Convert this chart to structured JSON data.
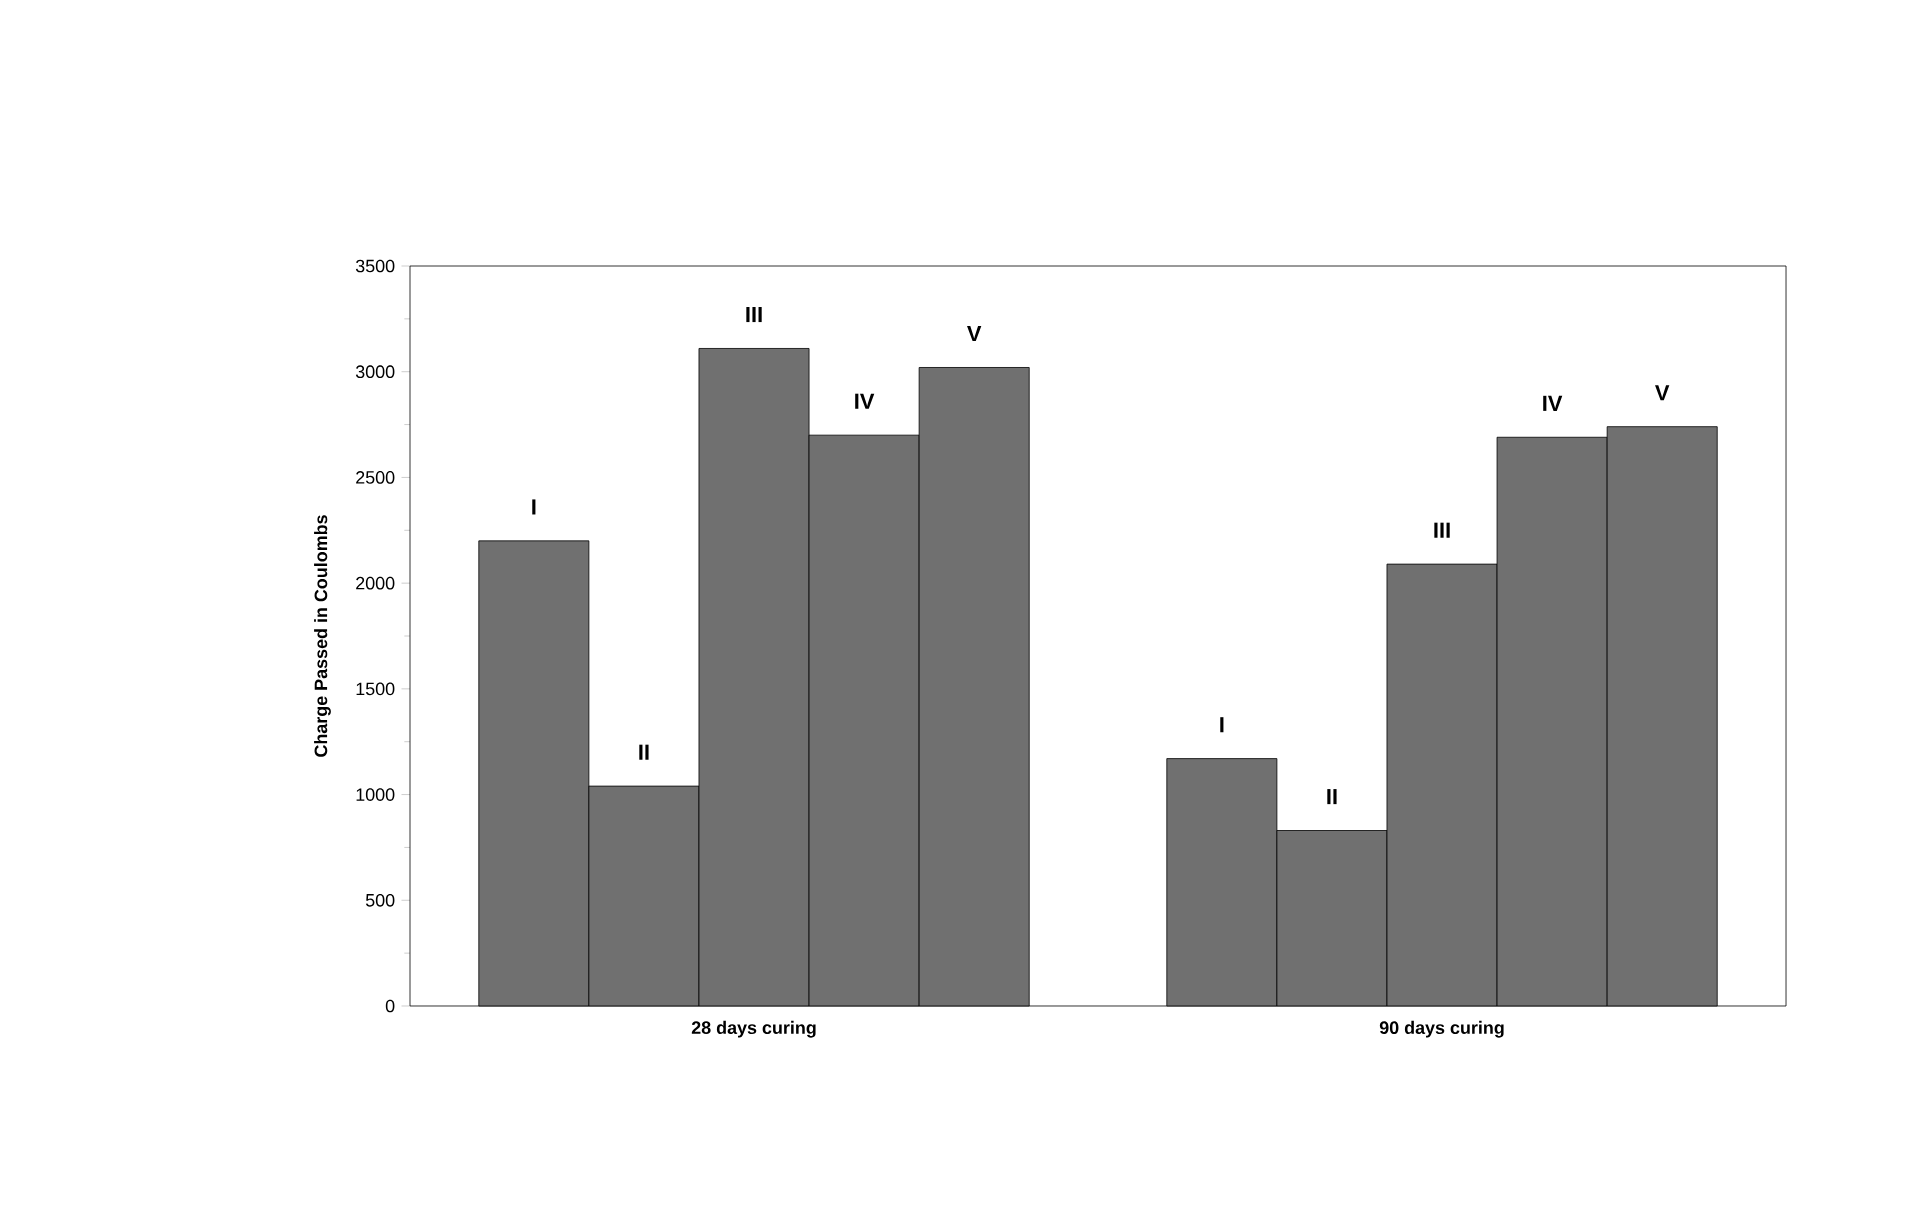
{
  "chart_data": {
    "type": "bar",
    "ylabel": "Charge Passed in Coulombs",
    "categories": [
      "28 days curing",
      "90 days curing"
    ],
    "series": [
      {
        "name": "I",
        "color": "#707070",
        "values": [
          2200,
          1170
        ]
      },
      {
        "name": "II",
        "color": "#707070",
        "values": [
          1040,
          830
        ]
      },
      {
        "name": "III",
        "color": "#707070",
        "values": [
          3110,
          2090
        ]
      },
      {
        "name": "IV",
        "color": "#707070",
        "values": [
          2700,
          2690
        ]
      },
      {
        "name": "V",
        "color": "#707070",
        "values": [
          3020,
          2740
        ]
      }
    ],
    "ylim": [
      0,
      3500
    ],
    "yticks": [
      0,
      500,
      1000,
      1500,
      2000,
      2500,
      3000,
      3500
    ]
  }
}
